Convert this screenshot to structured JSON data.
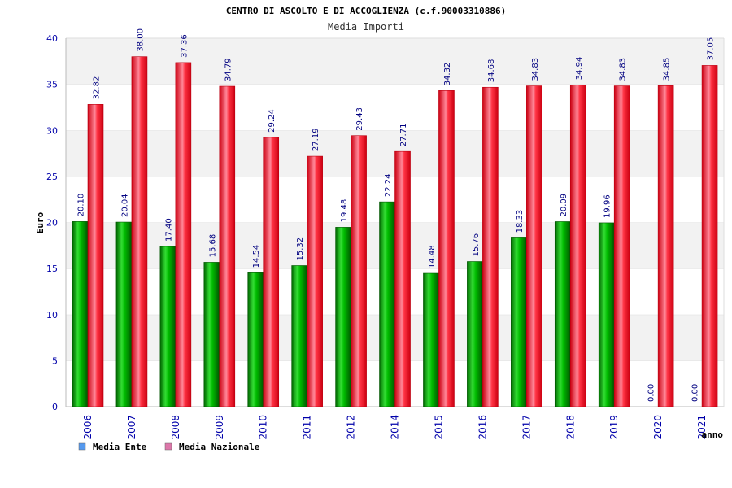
{
  "chart_data": {
    "type": "bar",
    "title": "CENTRO DI ASCOLTO E DI ACCOGLIENZA (c.f.90003310886)",
    "subtitle": "Media Importi",
    "xlabel": "anno",
    "ylabel": "Euro",
    "ylim": [
      0,
      40
    ],
    "yticks": [
      "0",
      "5",
      "10",
      "15",
      "20",
      "25",
      "30",
      "35",
      "40"
    ],
    "grid": "horizontal bands",
    "legend_position": "bottom-left",
    "categories": [
      "2006",
      "2007",
      "2008",
      "2009",
      "2010",
      "2011",
      "2012",
      "2014",
      "2015",
      "2016",
      "2017",
      "2018",
      "2019",
      "2020",
      "2021"
    ],
    "series": [
      {
        "name": "Media Ente",
        "color": "#00aa00",
        "legend_color": "#5599ee",
        "values": [
          20.1,
          20.04,
          17.4,
          15.68,
          14.54,
          15.32,
          19.48,
          22.24,
          14.48,
          15.76,
          18.33,
          20.09,
          19.96,
          0.0,
          0.0
        ],
        "labels": [
          "20.10",
          "20.04",
          "17.40",
          "15.68",
          "14.54",
          "15.32",
          "19.48",
          "22.24",
          "14.48",
          "15.76",
          "18.33",
          "20.09",
          "19.96",
          "0.00",
          "0.00"
        ]
      },
      {
        "name": "Media Nazionale",
        "color": "#ee1122",
        "legend_color": "#dd77aa",
        "values": [
          32.82,
          38.0,
          37.36,
          34.79,
          29.24,
          27.19,
          29.43,
          27.71,
          34.32,
          34.68,
          34.83,
          34.94,
          34.83,
          34.85,
          37.05
        ],
        "labels": [
          "32.82",
          "38.00",
          "37.36",
          "34.79",
          "29.24",
          "27.19",
          "29.43",
          "27.71",
          "34.32",
          "34.68",
          "34.83",
          "34.94",
          "34.83",
          "34.85",
          "37.05"
        ]
      }
    ]
  }
}
